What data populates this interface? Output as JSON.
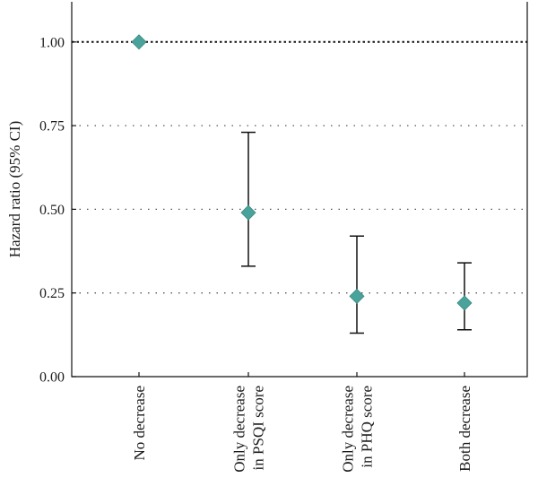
{
  "chart_data": {
    "type": "scatter",
    "ylabel": "Hazard ratio (95% CI)",
    "ylim": [
      0,
      1.12
    ],
    "yticks": [
      "0.00",
      "0.25",
      "0.50",
      "0.75",
      "1.00"
    ],
    "ytick_values": [
      0,
      0.25,
      0.5,
      0.75,
      1.0
    ],
    "grid_y": [
      0.25,
      0.5,
      0.75
    ],
    "reference_line": 1.0,
    "categories": [
      [
        "No decrease"
      ],
      [
        "Only decrease",
        "in PSQI score"
      ],
      [
        "Only decrease",
        "in PHQ score"
      ],
      [
        "Both decrease"
      ]
    ],
    "values": [
      1.0,
      0.49,
      0.24,
      0.22
    ],
    "ci_lower": [
      null,
      0.33,
      0.13,
      0.14
    ],
    "ci_upper": [
      null,
      0.73,
      0.42,
      0.34
    ],
    "marker_color": "#4aa39a"
  }
}
